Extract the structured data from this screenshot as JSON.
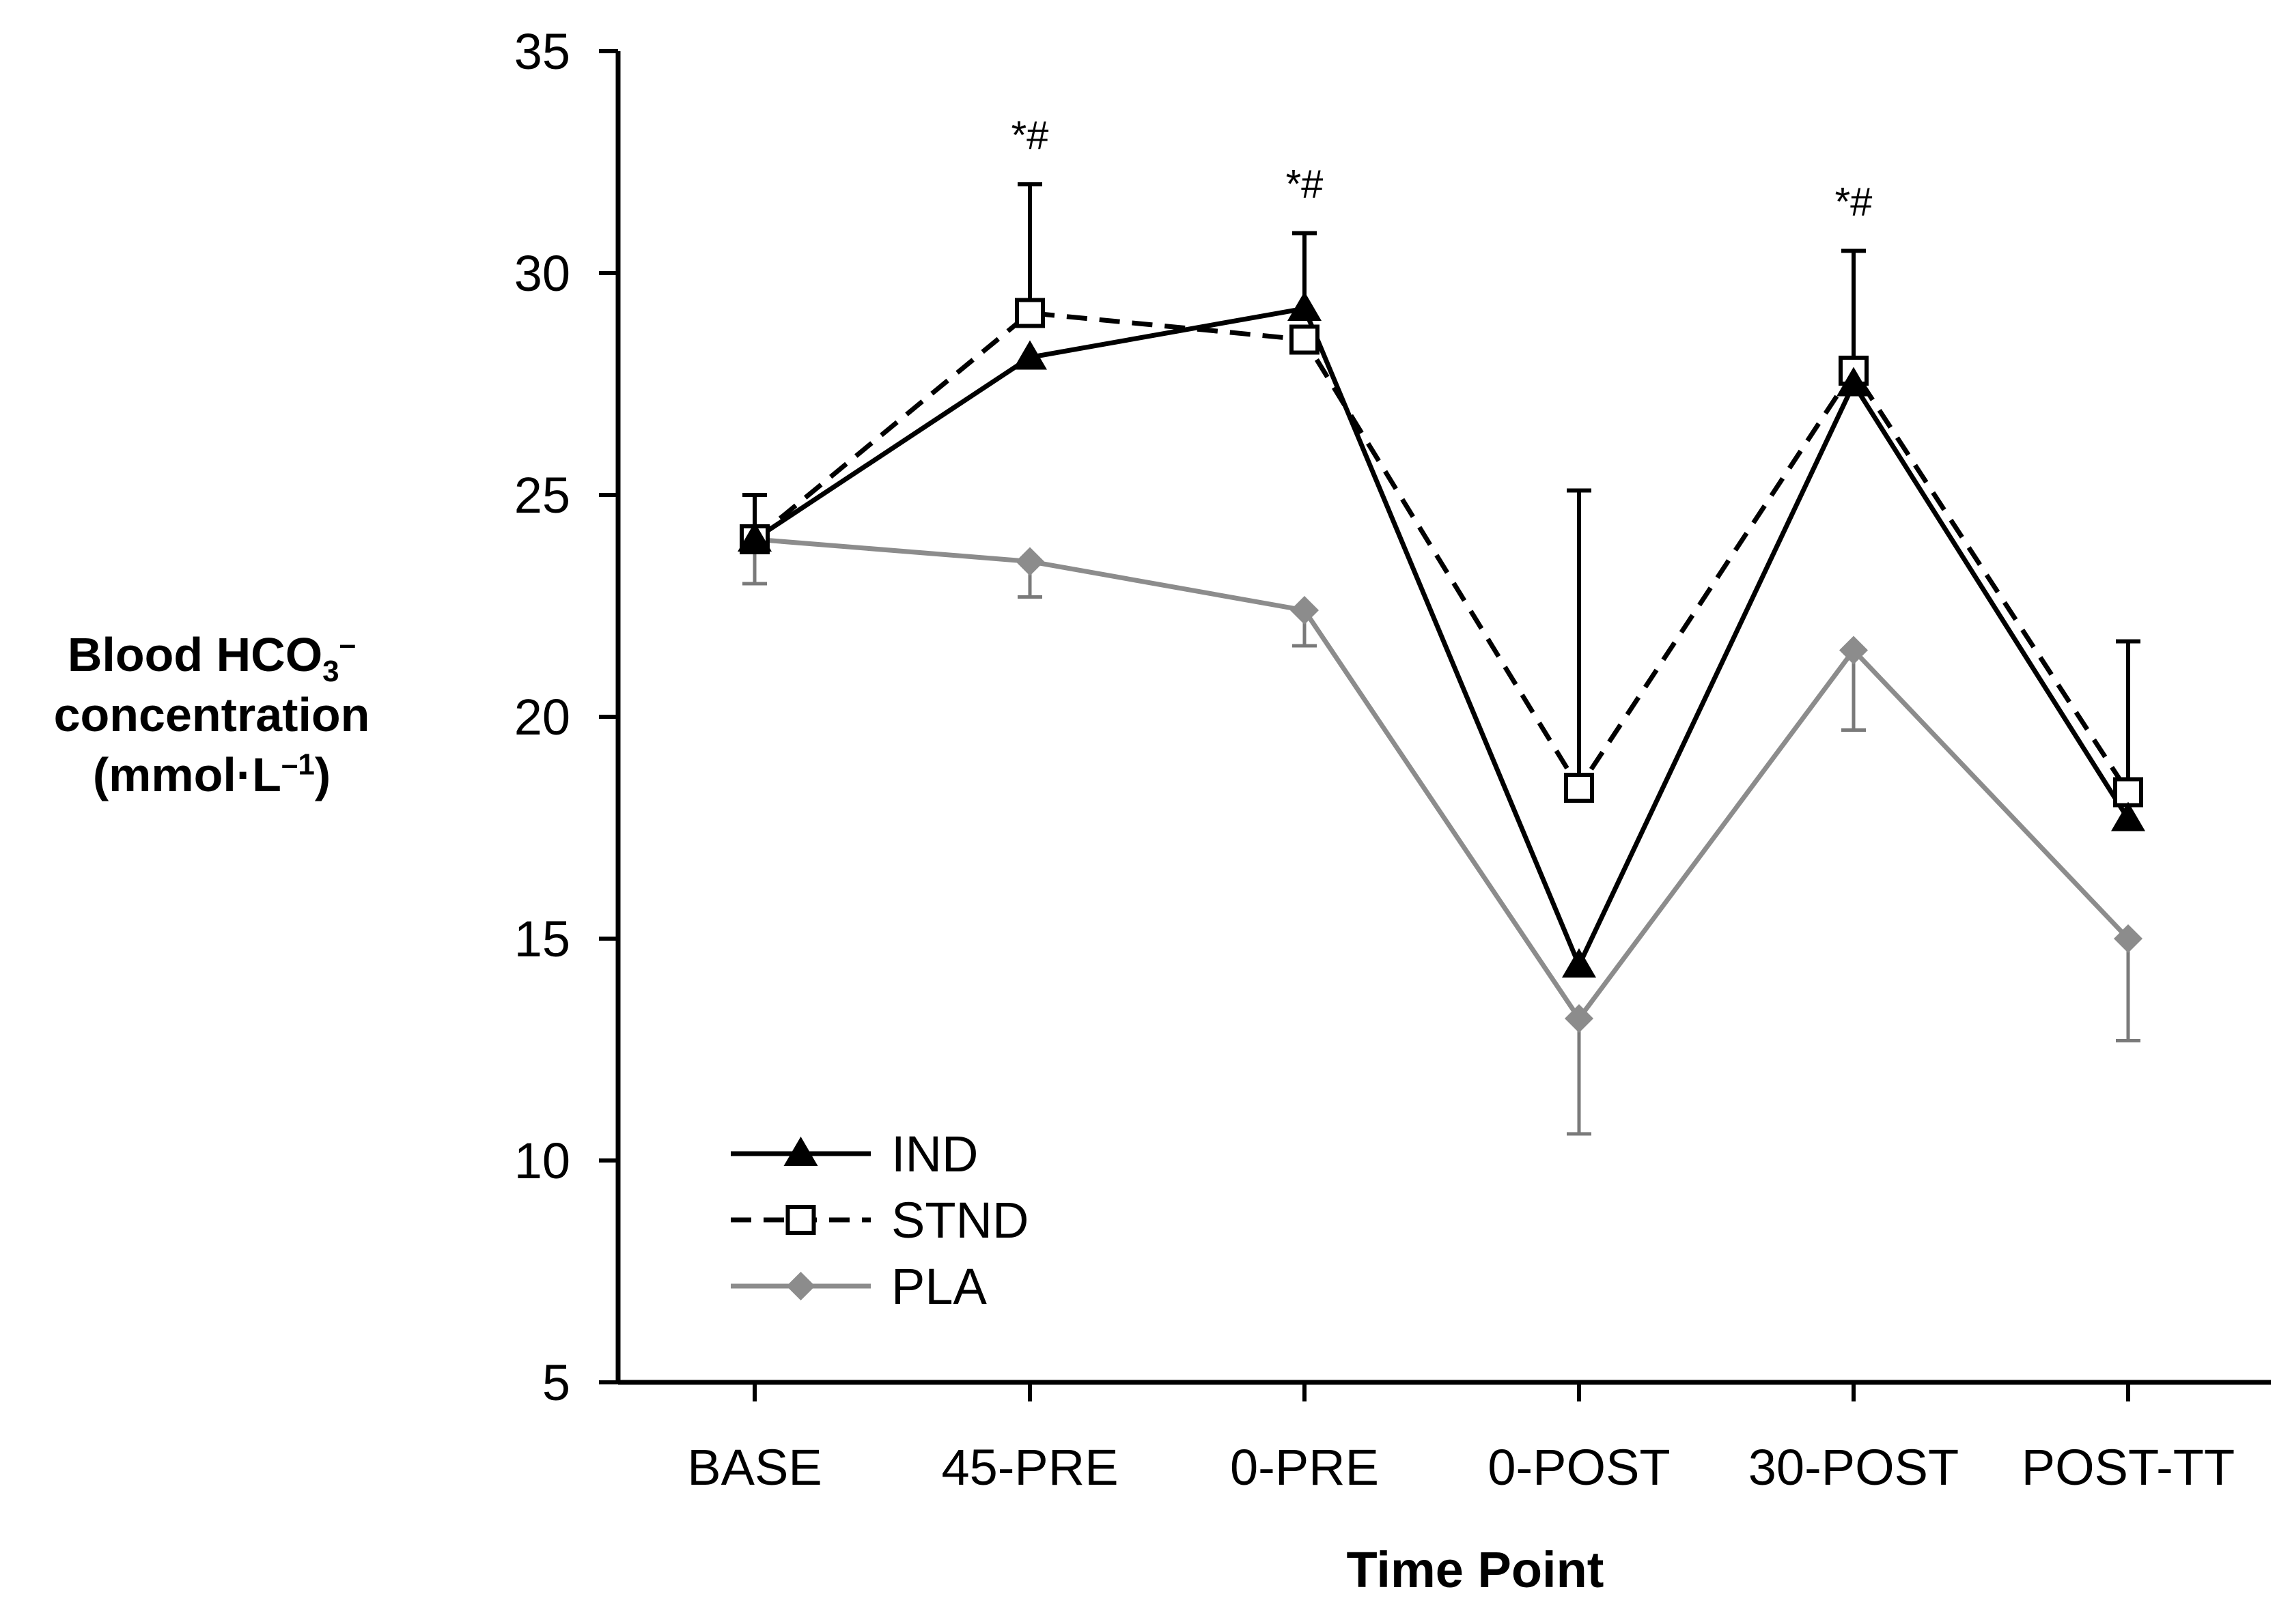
{
  "chart_data": {
    "type": "line",
    "title": "",
    "xlabel": "Time Point",
    "ylabel": {
      "line1_main": "Blood HCO",
      "line1_sub": "3",
      "line1_sup": "–",
      "line2": "concentration",
      "line3_main": "(mmol·L",
      "line3_sup": "–1",
      "line3_end": ")"
    },
    "categories": [
      "BASE",
      "45-PRE",
      "0-PRE",
      "0-POST",
      "30-POST",
      "POST-TT"
    ],
    "ylim": [
      5,
      35
    ],
    "yticks": [
      5,
      10,
      15,
      20,
      25,
      30,
      35
    ],
    "grid": false,
    "legend_position": "bottom-left",
    "series": [
      {
        "name": "IND",
        "color": "#000000",
        "marker": "triangle",
        "line": "solid",
        "values": [
          24.0,
          28.1,
          29.2,
          14.4,
          27.5,
          17.7
        ],
        "error_upper": [
          25.0,
          null,
          30.9,
          null,
          null,
          null
        ],
        "error_lower": [
          null,
          null,
          null,
          null,
          null,
          null
        ]
      },
      {
        "name": "STND",
        "color": "#000000",
        "marker": "open-square",
        "line": "dashed",
        "values": [
          24.0,
          29.1,
          28.5,
          18.4,
          27.8,
          18.3
        ],
        "error_upper": [
          null,
          32.0,
          null,
          25.1,
          30.5,
          21.7
        ],
        "error_lower": [
          null,
          null,
          null,
          null,
          null,
          null
        ]
      },
      {
        "name": "PLA",
        "color": "#8c8c8c",
        "marker": "diamond",
        "line": "solid",
        "values": [
          24.0,
          23.5,
          22.4,
          13.2,
          21.5,
          15.0
        ],
        "error_upper": [
          null,
          null,
          null,
          null,
          null,
          null
        ],
        "error_lower": [
          23.0,
          22.7,
          21.6,
          10.6,
          19.7,
          12.7
        ]
      }
    ],
    "annotations": [
      {
        "text": "*#",
        "category": "45-PRE",
        "y": 32.8
      },
      {
        "text": "*#",
        "category": "0-PRE",
        "y": 31.7
      },
      {
        "text": "*#",
        "category": "30-POST",
        "y": 31.3
      }
    ]
  }
}
